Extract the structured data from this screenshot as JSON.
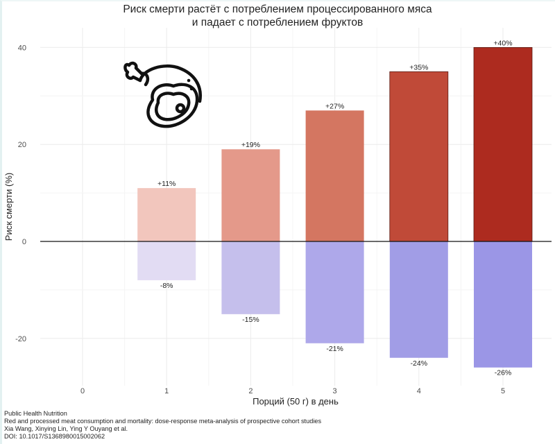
{
  "title_lines": [
    "Риск смерти растёт с потреблением процессированного мяса",
    "и падает с потреблением фруктов"
  ],
  "source": {
    "journal": "Public Health Nutrition",
    "article": "Red and processed meat consumption and mortality: dose-response meta-analysis of prospective cohort studies",
    "authors": "Xia Wang, Xinying Lin, Ying Y Ouyang et al.",
    "doi": "DOI: 10.1017/S1368980015002062"
  },
  "icon": "meat-steak-chicken-leg-icon",
  "chart_data": {
    "type": "bar",
    "xlabel": "Порций (50 г) в день",
    "ylabel": "Риск смерти (%)",
    "x_ticks": [
      0,
      1,
      2,
      3,
      4,
      5
    ],
    "y_ticks": [
      -20,
      0,
      20,
      40
    ],
    "xlim": [
      0,
      5
    ],
    "ylim": [
      -28,
      42
    ],
    "grid": true,
    "categories": [
      1,
      2,
      3,
      4,
      5
    ],
    "series": [
      {
        "values": [
          11,
          19,
          27,
          35,
          40
        ],
        "labels": [
          "+11%",
          "+19%",
          "+27%",
          "+35%",
          "+40%"
        ],
        "colors": [
          "#f2c6bd",
          "#e4998a",
          "#d47661",
          "#c04a38",
          "#ad2b1f"
        ]
      },
      {
        "values": [
          -8,
          -15,
          -21,
          -24,
          -26
        ],
        "labels": [
          "-8%",
          "-15%",
          "-21%",
          "-24%",
          "-26%"
        ],
        "colors": [
          "#e2dcf3",
          "#c5bfec",
          "#aea8ea",
          "#a19de6",
          "#9b96e6"
        ]
      }
    ]
  }
}
